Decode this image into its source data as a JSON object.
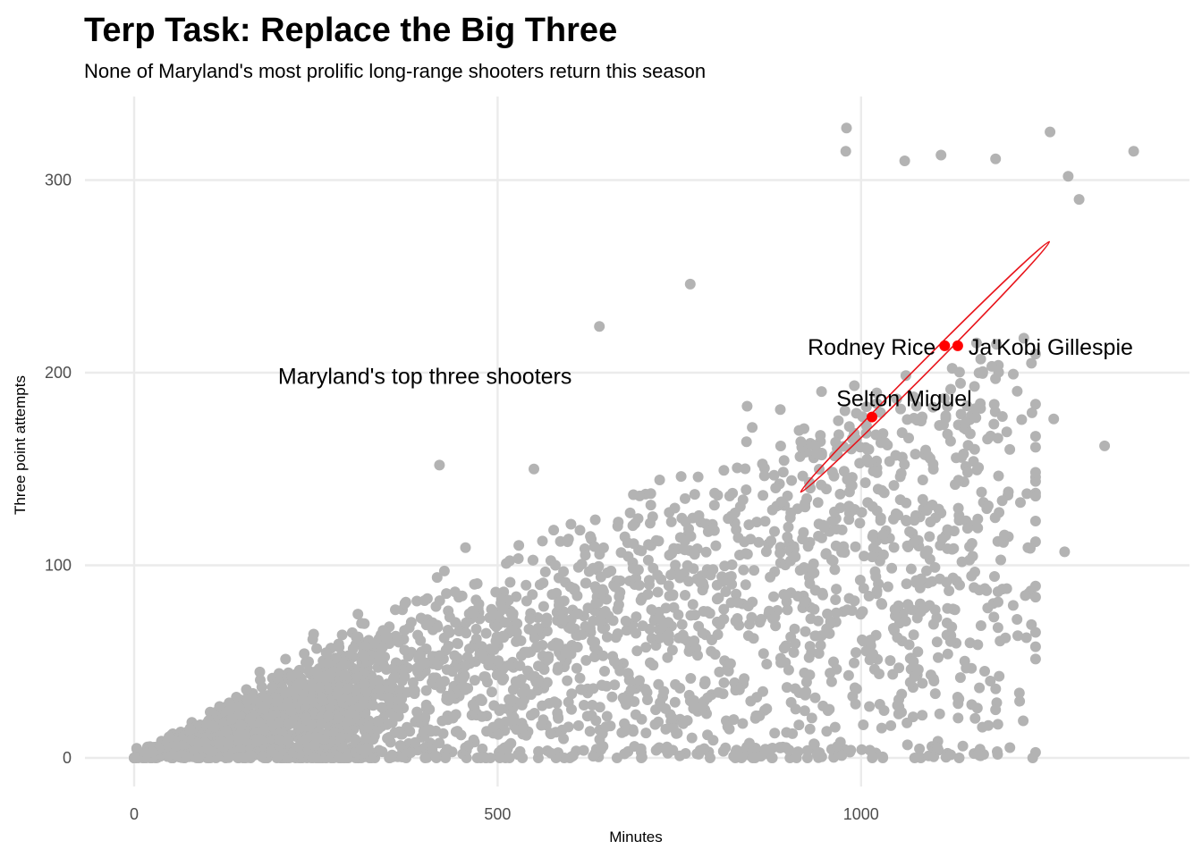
{
  "chart_data": {
    "type": "scatter",
    "title": "Terp Task: Replace the Big Three",
    "subtitle": "None of Maryland's most prolific long-range shooters return this season",
    "xlabel": "Minutes",
    "ylabel": "Three point attempts",
    "xlim": [
      -30,
      1450
    ],
    "ylim": [
      -5,
      345
    ],
    "x_ticks": [
      0,
      500,
      1000
    ],
    "y_ticks": [
      0,
      100,
      200,
      300
    ],
    "grid": true,
    "colors": {
      "background_points": "#b3b3b3",
      "highlight_points": "#ff0000",
      "ellipse": "#e8141b"
    },
    "background_series": {
      "description_count": 3000,
      "notable_points": [
        {
          "x": 1375,
          "y": 315
        },
        {
          "x": 1260,
          "y": 325
        },
        {
          "x": 980,
          "y": 327
        },
        {
          "x": 979,
          "y": 315
        },
        {
          "x": 1335,
          "y": 162
        },
        {
          "x": 1285,
          "y": 302
        },
        {
          "x": 1300,
          "y": 290
        },
        {
          "x": 1110,
          "y": 313
        },
        {
          "x": 1185,
          "y": 311
        },
        {
          "x": 1060,
          "y": 310
        },
        {
          "x": 640,
          "y": 224
        },
        {
          "x": 765,
          "y": 246
        },
        {
          "x": 420,
          "y": 152
        },
        {
          "x": 550,
          "y": 150
        },
        {
          "x": 1170,
          "y": 45
        },
        {
          "x": 1185,
          "y": 25
        },
        {
          "x": 1135,
          "y": 0
        },
        {
          "x": 1105,
          "y": 5
        },
        {
          "x": 1280,
          "y": 107
        },
        {
          "x": 1265,
          "y": 176
        }
      ]
    },
    "highlight_series": [
      {
        "name": "Rodney Rice",
        "x": 1115,
        "y": 214
      },
      {
        "name": "Ja'Kobi Gillespie",
        "x": 1133,
        "y": 214
      },
      {
        "name": "Selton Miguel",
        "x": 1015,
        "y": 177
      }
    ],
    "annotations": [
      {
        "text": "Maryland's top three shooters",
        "x": 400,
        "y": 198
      }
    ],
    "ellipse": {
      "center": [
        1088,
        203
      ],
      "semi_major_data": [
        171,
        65
      ],
      "semi_minor": 6
    }
  }
}
